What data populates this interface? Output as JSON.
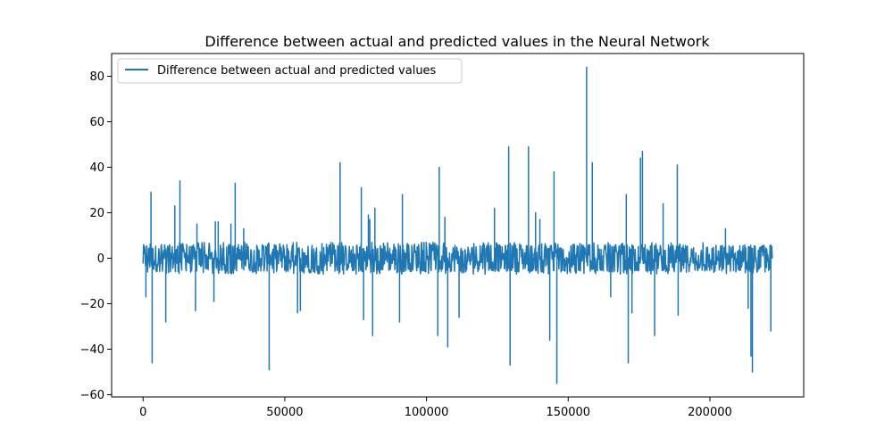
{
  "chart_data": {
    "type": "line",
    "title": "Difference between actual and predicted values in the Neural Network",
    "xlabel": "",
    "ylabel": "",
    "xlim": [
      -11100,
      233100
    ],
    "ylim": [
      -61,
      90
    ],
    "x_ticks": [
      0,
      50000,
      100000,
      150000,
      200000
    ],
    "x_tick_labels": [
      "0",
      "50000",
      "100000",
      "150000",
      "200000"
    ],
    "y_ticks": [
      -60,
      -40,
      -20,
      0,
      20,
      40,
      60,
      80
    ],
    "y_tick_labels": [
      "−60",
      "−40",
      "−20",
      "0",
      "20",
      "40",
      "60",
      "80"
    ],
    "grid": false,
    "legend": {
      "placement": "top-left",
      "entries": [
        "Difference between actual and predicted values"
      ]
    },
    "series": [
      {
        "name": "Difference between actual and predicted values",
        "color": "#1f77b4",
        "x_range": [
          0,
          222000
        ],
        "noise_band": [
          -7,
          7
        ],
        "spikes": [
          {
            "x": 1000,
            "y": -17
          },
          {
            "x": 2800,
            "y": 29
          },
          {
            "x": 3200,
            "y": -46
          },
          {
            "x": 8000,
            "y": -28
          },
          {
            "x": 11200,
            "y": 23
          },
          {
            "x": 13000,
            "y": 34
          },
          {
            "x": 18500,
            "y": -23
          },
          {
            "x": 19000,
            "y": 15
          },
          {
            "x": 25000,
            "y": -19
          },
          {
            "x": 25500,
            "y": 16
          },
          {
            "x": 26500,
            "y": 16
          },
          {
            "x": 31000,
            "y": 15
          },
          {
            "x": 32500,
            "y": 33
          },
          {
            "x": 35500,
            "y": 13
          },
          {
            "x": 44500,
            "y": -49
          },
          {
            "x": 54500,
            "y": -24
          },
          {
            "x": 55500,
            "y": -23
          },
          {
            "x": 69500,
            "y": 42
          },
          {
            "x": 77000,
            "y": 31
          },
          {
            "x": 77800,
            "y": -27
          },
          {
            "x": 79500,
            "y": 19
          },
          {
            "x": 80000,
            "y": 17
          },
          {
            "x": 81000,
            "y": -34
          },
          {
            "x": 81800,
            "y": 22
          },
          {
            "x": 90500,
            "y": -28
          },
          {
            "x": 91500,
            "y": 28
          },
          {
            "x": 104000,
            "y": -34
          },
          {
            "x": 104500,
            "y": 40
          },
          {
            "x": 106500,
            "y": 18
          },
          {
            "x": 107500,
            "y": -39
          },
          {
            "x": 111500,
            "y": -26
          },
          {
            "x": 124000,
            "y": 22
          },
          {
            "x": 129000,
            "y": 49
          },
          {
            "x": 129500,
            "y": -47
          },
          {
            "x": 136000,
            "y": 49
          },
          {
            "x": 138500,
            "y": 20
          },
          {
            "x": 140000,
            "y": 17
          },
          {
            "x": 143500,
            "y": -36
          },
          {
            "x": 145000,
            "y": 38
          },
          {
            "x": 146000,
            "y": -55
          },
          {
            "x": 156500,
            "y": 84
          },
          {
            "x": 158500,
            "y": 42
          },
          {
            "x": 165000,
            "y": -17
          },
          {
            "x": 170500,
            "y": 28
          },
          {
            "x": 171200,
            "y": -46
          },
          {
            "x": 172500,
            "y": -24
          },
          {
            "x": 175500,
            "y": 44
          },
          {
            "x": 176200,
            "y": 47
          },
          {
            "x": 180500,
            "y": -34
          },
          {
            "x": 183500,
            "y": 24
          },
          {
            "x": 188500,
            "y": 41
          },
          {
            "x": 188800,
            "y": -25
          },
          {
            "x": 205500,
            "y": 13
          },
          {
            "x": 213500,
            "y": -22
          },
          {
            "x": 214500,
            "y": -43
          },
          {
            "x": 215000,
            "y": -50
          },
          {
            "x": 221500,
            "y": -32
          }
        ]
      }
    ]
  }
}
